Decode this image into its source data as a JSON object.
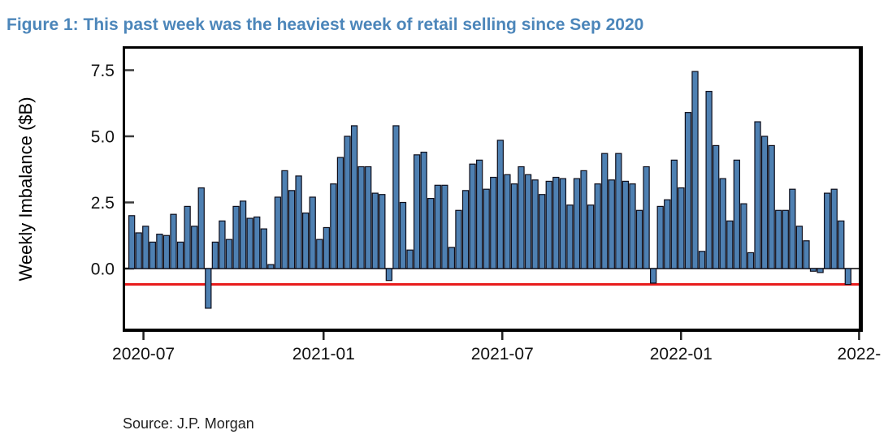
{
  "figure_title": "Figure 1: This past week was the heaviest week of retail selling since Sep 2020",
  "source": "Source: J.P. Morgan",
  "colors": {
    "title_blue": "#4c86ba",
    "bar_fill": "#4e80b2",
    "bar_stroke": "#0d0d1a",
    "red_line": "#e81c1c",
    "axis_black": "#000000",
    "tick_gray": "#3a3a3a",
    "label_black": "#111111"
  },
  "chart_data": {
    "type": "bar",
    "title": "This past week was the heaviest week of retail selling since Sep 2020",
    "xlabel": "",
    "ylabel": "Weekly Imbalance ($B)",
    "x_unit": "week",
    "ylim": [
      -2.35,
      8.35
    ],
    "grid": false,
    "legend": null,
    "y_ticks": [
      7.5,
      5.0,
      2.5,
      0.0
    ],
    "y_tick_labels": [
      "7.5",
      "5.0",
      "2.5",
      "0.0"
    ],
    "x_tick_labels": [
      "2020-07",
      "2021-01",
      "2021-07",
      "2022-01",
      "2022-"
    ],
    "x_tick_positions_weeks": [
      2.1,
      28.0,
      53.7,
      79.4,
      105.0
    ],
    "red_reference_line": -0.6,
    "values": [
      2.0,
      1.35,
      1.6,
      1.0,
      1.3,
      1.25,
      2.05,
      1.0,
      2.35,
      1.6,
      3.05,
      -1.5,
      1.0,
      1.8,
      1.1,
      2.35,
      2.55,
      1.9,
      1.95,
      1.5,
      0.15,
      2.7,
      3.7,
      2.95,
      3.5,
      2.1,
      2.7,
      1.1,
      1.55,
      3.2,
      4.2,
      5.0,
      5.4,
      3.85,
      3.85,
      2.85,
      2.8,
      -0.45,
      5.4,
      2.5,
      0.7,
      4.3,
      4.4,
      2.65,
      3.15,
      3.15,
      0.8,
      2.2,
      2.95,
      3.95,
      4.1,
      3.0,
      3.45,
      4.85,
      3.55,
      3.2,
      3.85,
      3.55,
      3.35,
      2.8,
      3.3,
      3.45,
      3.4,
      2.4,
      3.4,
      3.7,
      2.4,
      3.2,
      4.35,
      3.35,
      4.35,
      3.3,
      3.2,
      2.2,
      3.85,
      -0.55,
      2.35,
      2.6,
      4.1,
      3.05,
      5.9,
      7.45,
      0.65,
      6.7,
      4.65,
      3.4,
      1.8,
      4.1,
      2.45,
      0.6,
      5.55,
      5.0,
      4.65,
      2.2,
      2.2,
      3.0,
      1.6,
      1.05,
      -0.1,
      -0.15,
      2.85,
      3.0,
      1.8,
      -0.6
    ]
  }
}
